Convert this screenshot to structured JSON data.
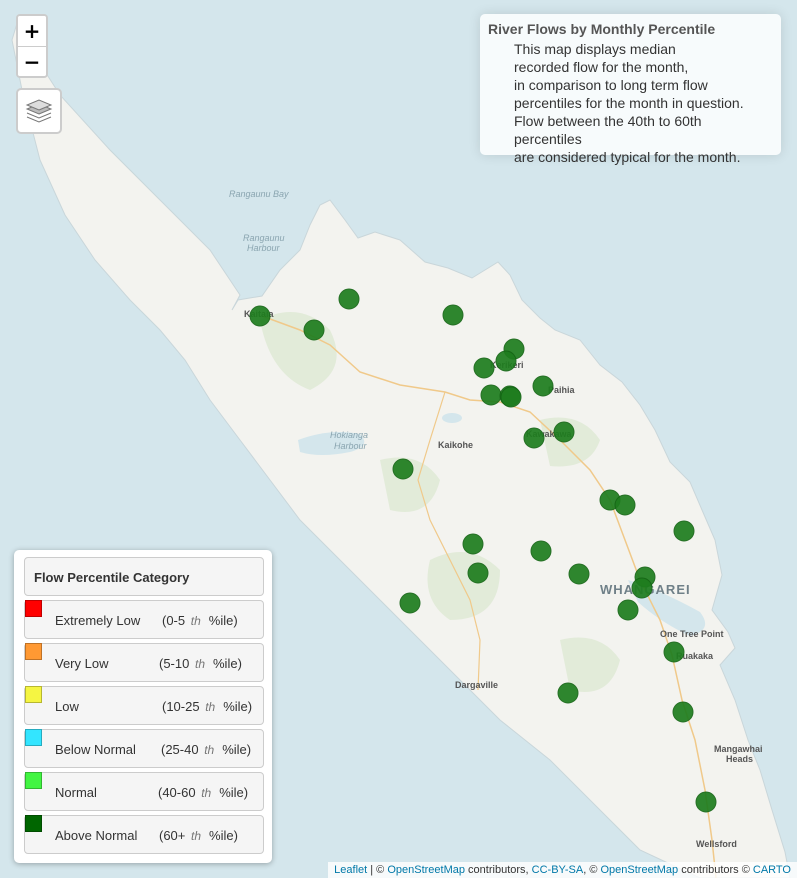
{
  "controls": {
    "zoom_in": "+",
    "zoom_out": "−"
  },
  "info": {
    "title": "River Flows by Monthly Percentile",
    "lines": [
      "This map displays median",
      "recorded flow for the month,",
      "in comparison to long term flow",
      "percentiles for the month in question.",
      "Flow between the 40th to 60th percentiles",
      "are considered typical for the month."
    ]
  },
  "places": {
    "rangaunu_bay": "Rangaunu Bay",
    "rangaunu_harbour_1": "Rangaunu",
    "rangaunu_harbour_2": "Harbour",
    "kaitaia": "Kaitaia",
    "kerikeri": "Kerikeri",
    "paihia": "Paihia",
    "kawakawa": "Kawakawa",
    "hokianga_harbour_1": "Hokianga",
    "hokianga_harbour_2": "Harbour",
    "kaikohe": "Kaikohe",
    "whangarei": "WHANGAREI",
    "one_tree_point": "One Tree Point",
    "ruakaka": "Ruakaka",
    "dargaville": "Dargaville",
    "mangawhai_heads_1": "Mangawhai",
    "mangawhai_heads_2": "Heads",
    "wellsford": "Wellsford"
  },
  "sites": {
    "count": 28,
    "category": "Above Normal",
    "color": "#1e7d1e"
  },
  "legend": {
    "title": "Flow Percentile Category",
    "items": [
      {
        "label": "Extremely Low",
        "range_pre": "(0-5",
        "th": "th",
        "range_post": "%ile)",
        "color": "#ff0000"
      },
      {
        "label": "Very Low",
        "range_pre": "(5-10",
        "th": "th",
        "range_post": "%ile)",
        "color": "#ff9933"
      },
      {
        "label": "Low",
        "range_pre": "(10-25",
        "th": "th",
        "range_post": "%ile)",
        "color": "#f5f542"
      },
      {
        "label": "Below Normal",
        "range_pre": "(25-40",
        "th": "th",
        "range_post": "%ile)",
        "color": "#33e5ff"
      },
      {
        "label": "Normal",
        "range_pre": "(40-60",
        "th": "th",
        "range_post": "%ile)",
        "color": "#42f542"
      },
      {
        "label": "Above Normal",
        "range_pre": "(60+",
        "th": "th",
        "range_post": "%ile)",
        "color": "#006600"
      }
    ]
  },
  "attribution": {
    "leaflet": "Leaflet",
    "sep1": " | © ",
    "osm1": "OpenStreetMap",
    "contributors1": " contributors, ",
    "ccbysa": "CC-BY-SA",
    "sep2": ", © ",
    "osm2": "OpenStreetMap",
    "contributors2": " contributors © ",
    "carto": "CARTO"
  }
}
